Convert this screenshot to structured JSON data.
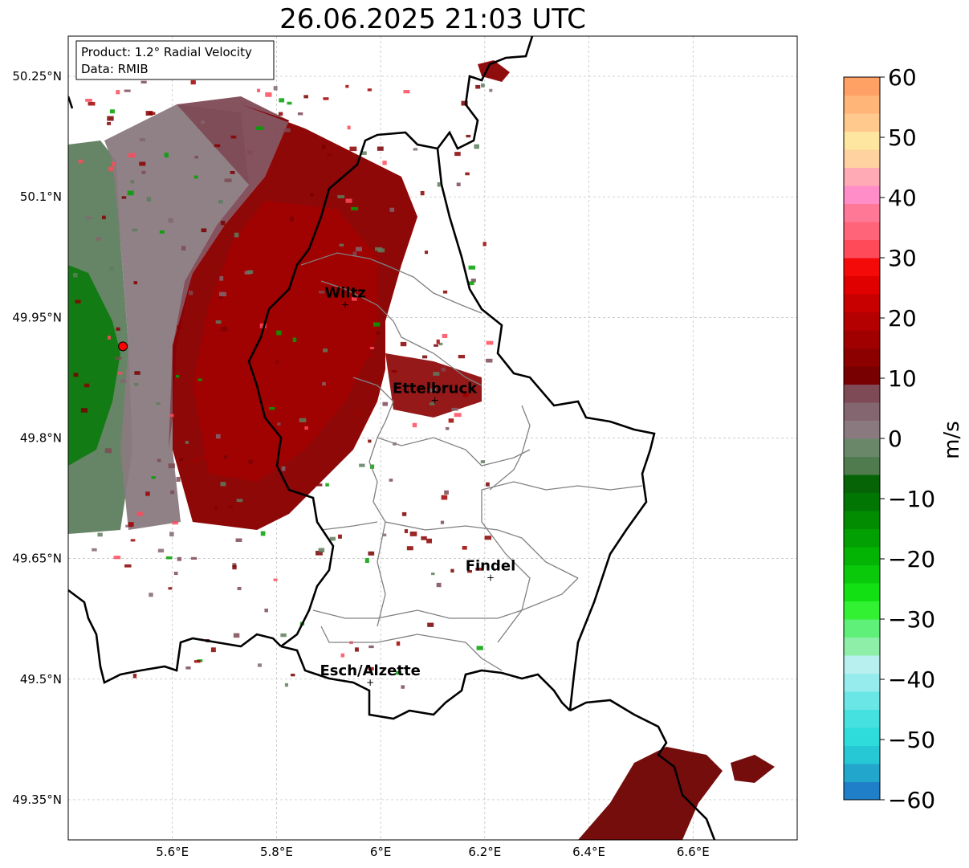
{
  "title": "26.06.2025 21:03 UTC",
  "info_box": {
    "line1": "Product: 1.2° Radial Velocity",
    "line2": "Data: RMIB"
  },
  "map": {
    "lon_range": [
      5.4,
      6.8
    ],
    "lat_range": [
      49.3,
      50.3
    ],
    "lat_ticks": [
      {
        "value": 50.25,
        "label": "50.25°N"
      },
      {
        "value": 50.1,
        "label": "50.1°N"
      },
      {
        "value": 49.95,
        "label": "49.95°N"
      },
      {
        "value": 49.8,
        "label": "49.8°N"
      },
      {
        "value": 49.65,
        "label": "49.65°N"
      },
      {
        "value": 49.5,
        "label": "49.5°N"
      },
      {
        "value": 49.35,
        "label": "49.35°N"
      }
    ],
    "lon_ticks": [
      {
        "value": 5.6,
        "label": "5.6°E"
      },
      {
        "value": 5.8,
        "label": "5.8°E"
      },
      {
        "value": 6.0,
        "label": "6°E"
      },
      {
        "value": 6.2,
        "label": "6.2°E"
      },
      {
        "value": 6.4,
        "label": "6.4°E"
      },
      {
        "value": 6.6,
        "label": "6.6°E"
      }
    ],
    "radar_site": {
      "lon": 5.505,
      "lat": 49.914,
      "color": "#ff0000"
    },
    "cities": [
      {
        "name": "Wiltz",
        "lon": 5.932,
        "lat": 49.966
      },
      {
        "name": "Ettelbruck",
        "lon": 6.104,
        "lat": 49.847
      },
      {
        "name": "Findel",
        "lon": 6.211,
        "lat": 49.626
      },
      {
        "name": "Esch/Alzette",
        "lon": 5.98,
        "lat": 49.496
      }
    ]
  },
  "colorbar": {
    "label": "m/s",
    "range": [
      -60,
      60
    ],
    "ticks": [
      {
        "value": 60,
        "label": "60"
      },
      {
        "value": 50,
        "label": "50"
      },
      {
        "value": 40,
        "label": "40"
      },
      {
        "value": 30,
        "label": "30"
      },
      {
        "value": 20,
        "label": "20"
      },
      {
        "value": 10,
        "label": "10"
      },
      {
        "value": 0,
        "label": "0"
      },
      {
        "value": -10,
        "label": "−10"
      },
      {
        "value": -20,
        "label": "−20"
      },
      {
        "value": -30,
        "label": "−30"
      },
      {
        "value": -40,
        "label": "−40"
      },
      {
        "value": -50,
        "label": "−50"
      },
      {
        "value": -60,
        "label": "−60"
      }
    ],
    "stops": [
      {
        "from": -60,
        "to": -57,
        "color": "#1f7fc8"
      },
      {
        "from": -57,
        "to": -54,
        "color": "#22a6cc"
      },
      {
        "from": -54,
        "to": -51,
        "color": "#27c8d6"
      },
      {
        "from": -51,
        "to": -48,
        "color": "#2fdcdc"
      },
      {
        "from": -48,
        "to": -45,
        "color": "#45e0e0"
      },
      {
        "from": -45,
        "to": -42,
        "color": "#6ae6e6"
      },
      {
        "from": -42,
        "to": -39,
        "color": "#96ecec"
      },
      {
        "from": -39,
        "to": -36,
        "color": "#b8f0f0"
      },
      {
        "from": -36,
        "to": -33,
        "color": "#8ef0a8"
      },
      {
        "from": -33,
        "to": -30,
        "color": "#5ef078"
      },
      {
        "from": -30,
        "to": -27,
        "color": "#32f032"
      },
      {
        "from": -27,
        "to": -24,
        "color": "#12e012"
      },
      {
        "from": -24,
        "to": -21,
        "color": "#0ac80a"
      },
      {
        "from": -21,
        "to": -18,
        "color": "#04b404"
      },
      {
        "from": -18,
        "to": -15,
        "color": "#02a002"
      },
      {
        "from": -15,
        "to": -12,
        "color": "#028c02"
      },
      {
        "from": -12,
        "to": -9,
        "color": "#027602"
      },
      {
        "from": -9,
        "to": -6,
        "color": "#066406"
      },
      {
        "from": -6,
        "to": -3,
        "color": "#4f7b4f"
      },
      {
        "from": -3,
        "to": 0,
        "color": "#6a876a"
      },
      {
        "from": 0,
        "to": 3,
        "color": "#8a7a80"
      },
      {
        "from": 3,
        "to": 6,
        "color": "#836670"
      },
      {
        "from": 6,
        "to": 9,
        "color": "#7e4a55"
      },
      {
        "from": 9,
        "to": 12,
        "color": "#780000"
      },
      {
        "from": 12,
        "to": 15,
        "color": "#8c0000"
      },
      {
        "from": 15,
        "to": 18,
        "color": "#a00000"
      },
      {
        "from": 18,
        "to": 21,
        "color": "#b40000"
      },
      {
        "from": 21,
        "to": 24,
        "color": "#c80000"
      },
      {
        "from": 24,
        "to": 27,
        "color": "#e00000"
      },
      {
        "from": 27,
        "to": 30,
        "color": "#f50a0a"
      },
      {
        "from": 30,
        "to": 33,
        "color": "#ff4a5a"
      },
      {
        "from": 33,
        "to": 36,
        "color": "#ff6478"
      },
      {
        "from": 36,
        "to": 39,
        "color": "#ff7896"
      },
      {
        "from": 39,
        "to": 42,
        "color": "#ff8ec8"
      },
      {
        "from": 42,
        "to": 45,
        "color": "#ffaab4"
      },
      {
        "from": 45,
        "to": 48,
        "color": "#ffd2a0"
      },
      {
        "from": 48,
        "to": 51,
        "color": "#ffe6a0"
      },
      {
        "from": 51,
        "to": 54,
        "color": "#ffc88c"
      },
      {
        "from": 54,
        "to": 57,
        "color": "#ffb478"
      },
      {
        "from": 57,
        "to": 60,
        "color": "#ffa064"
      }
    ]
  }
}
